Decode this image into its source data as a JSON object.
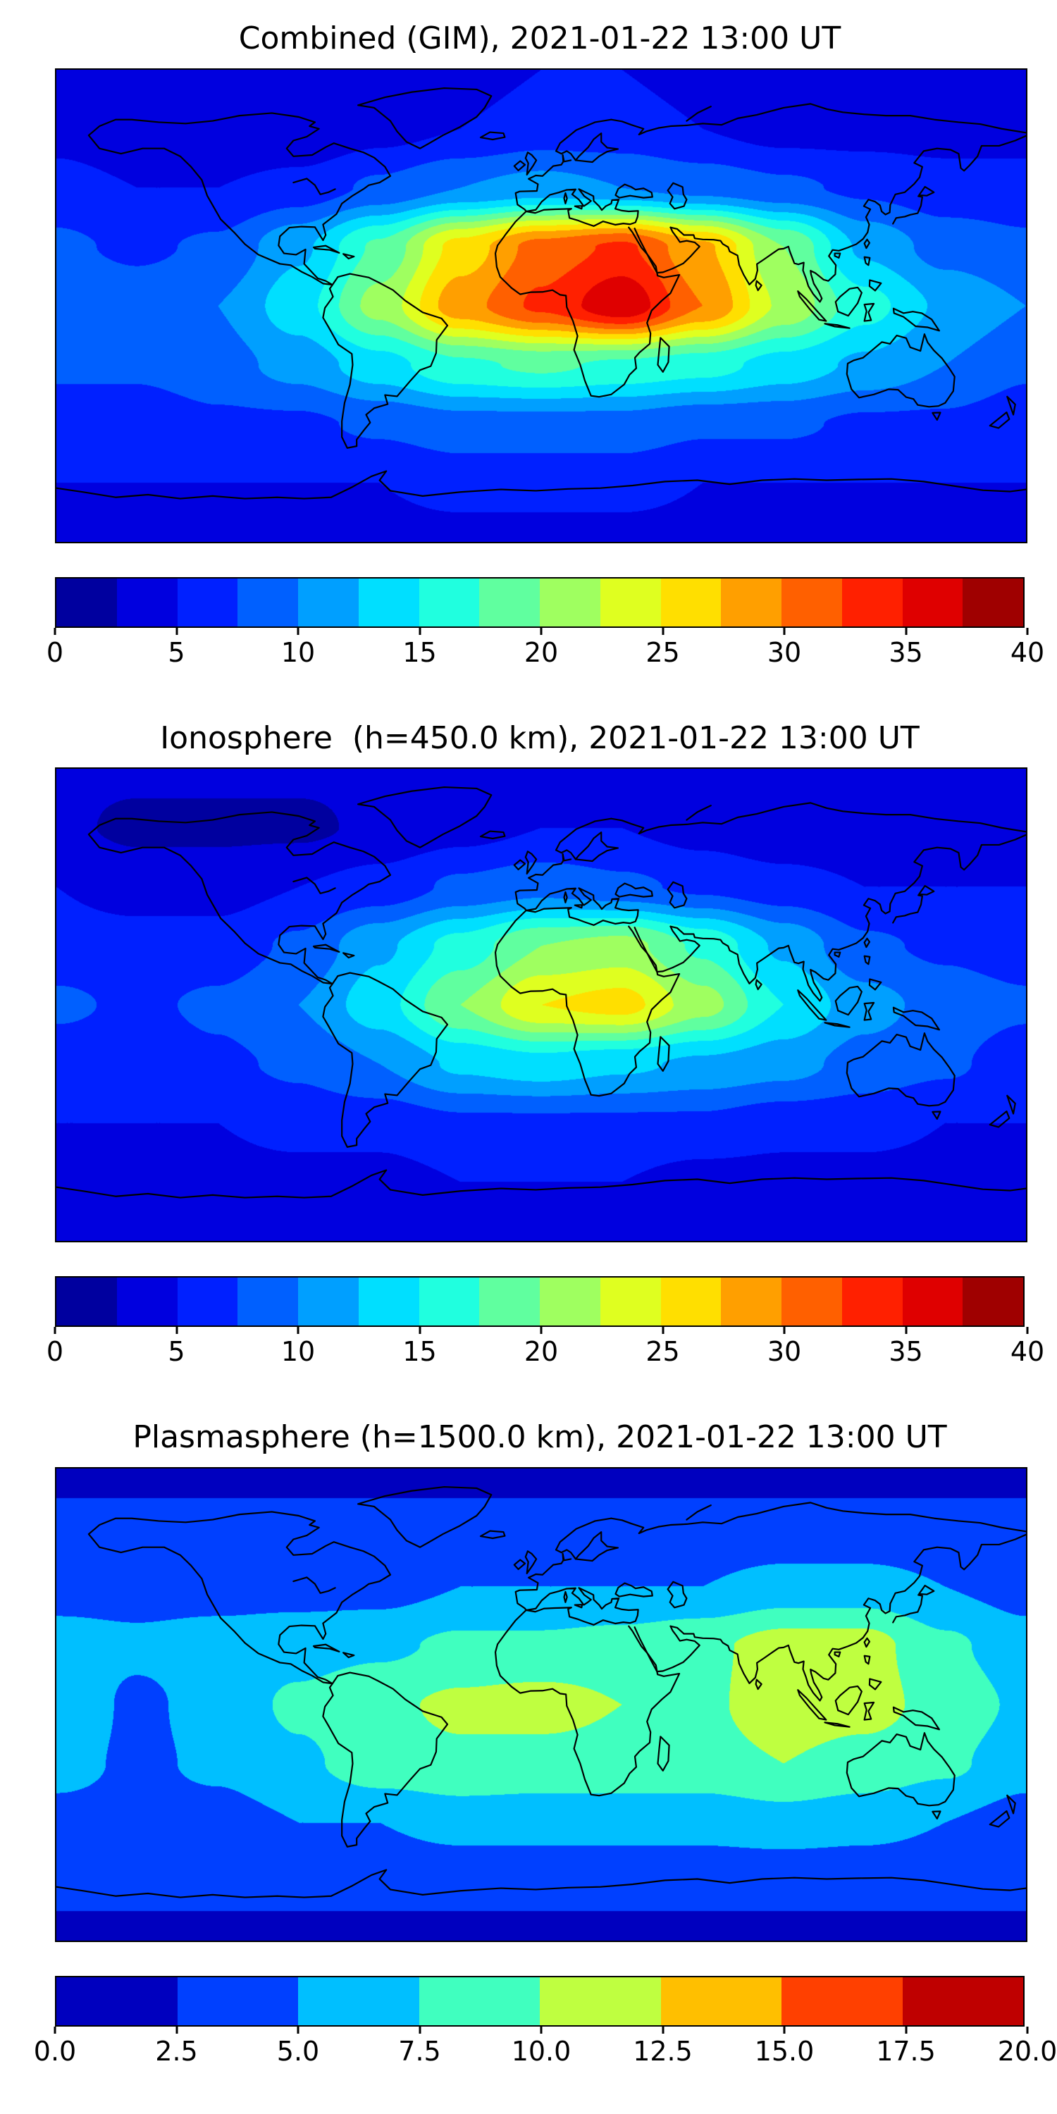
{
  "figure": {
    "background": "#ffffff",
    "coastline_color": "#000000",
    "frame_color": "#000000"
  },
  "chart_data": [
    {
      "type": "heatmap",
      "title": "Combined (GIM), 2021-01-22 13:00 UT",
      "projection": "equirectangular",
      "colormap": "jet",
      "colorbar": {
        "vmin": 0,
        "vmax": 40,
        "n_segments": 16,
        "tick_labels": [
          "0",
          "5",
          "10",
          "15",
          "20",
          "25",
          "30",
          "35",
          "40"
        ]
      },
      "grid": {
        "lon": [
          -180,
          -150,
          -120,
          -90,
          -60,
          -30,
          0,
          30,
          60,
          90,
          120,
          150,
          180
        ],
        "lat": [
          90,
          67.5,
          45,
          22.5,
          0,
          -22.5,
          -45,
          -67.5,
          -90
        ],
        "values": [
          [
            4,
            4,
            4,
            4,
            4,
            4,
            5,
            5,
            4,
            4,
            4,
            4,
            4
          ],
          [
            4,
            3,
            2.5,
            2.5,
            4,
            5,
            6,
            6,
            5,
            4,
            4,
            4,
            4
          ],
          [
            6,
            5,
            5,
            6,
            8,
            10,
            11,
            10,
            9,
            8,
            7,
            6,
            6
          ],
          [
            8,
            7,
            8,
            12,
            18,
            26,
            31,
            33,
            28,
            20,
            12,
            9,
            8
          ],
          [
            10,
            9,
            10,
            14,
            21,
            29,
            33,
            37,
            30,
            22,
            16,
            12,
            10
          ],
          [
            8,
            8,
            9,
            11,
            14,
            17,
            18,
            17,
            16,
            14,
            12,
            10,
            8
          ],
          [
            6,
            6,
            7,
            7,
            8,
            9,
            9,
            9,
            8,
            8,
            7,
            7,
            6
          ],
          [
            5,
            5,
            5,
            5,
            5,
            6,
            6,
            6,
            5,
            5,
            5,
            5,
            5
          ],
          [
            4,
            4,
            4,
            4,
            4,
            4,
            4,
            4,
            4,
            4,
            4,
            4,
            4
          ]
        ]
      }
    },
    {
      "type": "heatmap",
      "title": "Ionosphere  (h=450.0 km), 2021-01-22 13:00 UT",
      "projection": "equirectangular",
      "colormap": "jet",
      "colorbar": {
        "vmin": 0,
        "vmax": 40,
        "n_segments": 16,
        "tick_labels": [
          "0",
          "5",
          "10",
          "15",
          "20",
          "25",
          "30",
          "35",
          "40"
        ]
      },
      "grid": {
        "lon": [
          -180,
          -150,
          -120,
          -90,
          -60,
          -30,
          0,
          30,
          60,
          90,
          120,
          150,
          180
        ],
        "lat": [
          90,
          67.5,
          45,
          22.5,
          0,
          -22.5,
          -45,
          -67.5,
          -90
        ],
        "values": [
          [
            3,
            3,
            3,
            3,
            3,
            3,
            4,
            4,
            3,
            3,
            3,
            3,
            3
          ],
          [
            3,
            2,
            2,
            2,
            3,
            4,
            5,
            5,
            4,
            3,
            3,
            3,
            3
          ],
          [
            5,
            4,
            4,
            5,
            6,
            8,
            9,
            8,
            7,
            6,
            5,
            5,
            5
          ],
          [
            6,
            6,
            6,
            8,
            12,
            16,
            20,
            21,
            17,
            12,
            8,
            7,
            6
          ],
          [
            8,
            7,
            8,
            10,
            14,
            20,
            25,
            26,
            21,
            15,
            11,
            9,
            8
          ],
          [
            6,
            6,
            7,
            8,
            10,
            13,
            14,
            13,
            12,
            11,
            9,
            8,
            6
          ],
          [
            5,
            5,
            5,
            6,
            6,
            7,
            7,
            7,
            7,
            6,
            6,
            5,
            5
          ],
          [
            4,
            4,
            4,
            4,
            4,
            5,
            5,
            5,
            4,
            4,
            4,
            4,
            4
          ],
          [
            3,
            3,
            3,
            3,
            3,
            3,
            3,
            3,
            3,
            3,
            3,
            3,
            3
          ]
        ]
      }
    },
    {
      "type": "heatmap",
      "title": "Plasmasphere (h=1500.0 km), 2021-01-22 13:00 UT",
      "projection": "equirectangular",
      "colormap": "jet",
      "colorbar": {
        "vmin": 0,
        "vmax": 20,
        "n_segments": 8,
        "tick_labels": [
          "0.0",
          "2.5",
          "5.0",
          "7.5",
          "10.0",
          "12.5",
          "15.0",
          "17.5",
          "20.0"
        ]
      },
      "grid": {
        "lon": [
          -180,
          -150,
          -120,
          -90,
          -60,
          -30,
          0,
          30,
          60,
          90,
          120,
          150,
          180
        ],
        "lat": [
          90,
          67.5,
          45,
          22.5,
          0,
          -22.5,
          -45,
          -67.5,
          -90
        ],
        "values": [
          [
            2,
            2,
            2,
            2,
            2,
            2,
            2,
            2,
            2,
            2,
            2,
            2,
            2
          ],
          [
            3,
            3,
            3,
            3,
            3,
            3,
            3,
            3,
            3,
            3,
            3,
            3,
            3
          ],
          [
            4,
            4,
            4,
            4,
            4,
            5,
            5,
            5,
            5,
            6,
            6,
            5,
            4
          ],
          [
            6,
            5.5,
            6,
            6.5,
            7,
            8,
            8,
            8.5,
            9.5,
            11,
            11,
            8,
            6
          ],
          [
            7,
            4.5,
            6,
            8,
            9.5,
            10.5,
            11,
            10,
            9.5,
            11.5,
            11,
            9,
            7
          ],
          [
            6,
            4.5,
            5.5,
            7,
            9,
            9.5,
            9,
            9,
            9,
            10,
            9,
            8,
            6
          ],
          [
            4,
            4,
            4,
            5,
            5,
            6,
            6,
            6,
            6,
            6.5,
            6,
            5,
            4
          ],
          [
            3,
            3,
            3,
            3,
            3,
            3,
            3,
            3,
            3,
            3,
            3,
            3,
            3
          ],
          [
            2,
            2,
            2,
            2,
            2,
            2,
            2,
            2,
            2,
            2,
            2,
            2,
            2
          ]
        ]
      }
    }
  ]
}
